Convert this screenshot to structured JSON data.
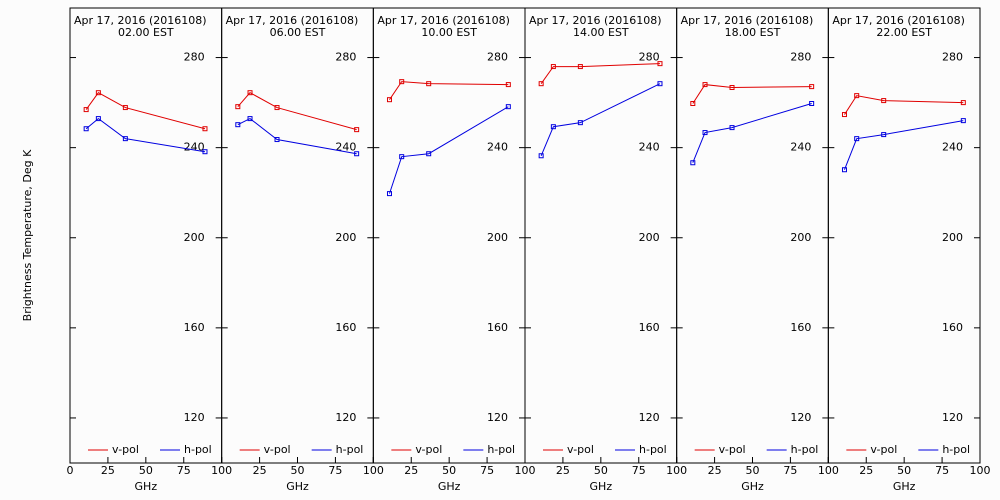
{
  "chart_data": [
    {
      "type": "line",
      "title": "Apr 17, 2016 (2016108)",
      "subtitle": "02.00 EST",
      "ylabel": "Brightness Temperature, Deg K",
      "xlabel": "GHz",
      "x": [
        10.65,
        18.7,
        36.5,
        89
      ],
      "xlim": [
        0,
        100
      ],
      "xticks": [
        0,
        25,
        50,
        75,
        100
      ],
      "ylim": [
        100,
        302
      ],
      "yticks": [
        120,
        160,
        200,
        240,
        280
      ],
      "legend": "lower",
      "series": [
        {
          "name": "v-pol",
          "color": "#e00000",
          "values": [
            256.9,
            264.4,
            257.8,
            248.4
          ]
        },
        {
          "name": "h-pol",
          "color": "#0000e0",
          "values": [
            248.4,
            252.9,
            244,
            238.2
          ]
        }
      ]
    },
    {
      "type": "line",
      "title": "Apr 17, 2016 (2016108)",
      "subtitle": "06.00 EST",
      "xlabel": "GHz",
      "x": [
        10.65,
        18.7,
        36.5,
        89
      ],
      "xlim": [
        0,
        100
      ],
      "xticks": [
        0,
        25,
        50,
        75,
        100
      ],
      "ylim": [
        100,
        302
      ],
      "yticks": [
        120,
        160,
        200,
        240,
        280
      ],
      "legend": "lower",
      "series": [
        {
          "name": "v-pol",
          "color": "#e00000",
          "values": [
            258.2,
            264.4,
            257.8,
            248
          ]
        },
        {
          "name": "h-pol",
          "color": "#0000e0",
          "values": [
            250.2,
            252.9,
            243.6,
            237.3
          ]
        }
      ]
    },
    {
      "type": "line",
      "title": "Apr 17, 2016 (2016108)",
      "subtitle": "10.00 EST",
      "xlabel": "GHz",
      "x": [
        10.65,
        18.7,
        36.5,
        89
      ],
      "xlim": [
        0,
        100
      ],
      "xticks": [
        0,
        25,
        50,
        75,
        100
      ],
      "ylim": [
        100,
        302
      ],
      "yticks": [
        120,
        160,
        200,
        240,
        280
      ],
      "legend": "lower",
      "series": [
        {
          "name": "v-pol",
          "color": "#e00000",
          "values": [
            261.3,
            269.3,
            268.4,
            268
          ]
        },
        {
          "name": "h-pol",
          "color": "#0000e0",
          "values": [
            219.6,
            236,
            237.3,
            258.2
          ]
        }
      ]
    },
    {
      "type": "line",
      "title": "Apr 17, 2016 (2016108)",
      "subtitle": "14.00 EST",
      "xlabel": "GHz",
      "x": [
        10.65,
        18.7,
        36.5,
        89
      ],
      "xlim": [
        0,
        100
      ],
      "xticks": [
        0,
        25,
        50,
        75,
        100
      ],
      "ylim": [
        100,
        302
      ],
      "yticks": [
        120,
        160,
        200,
        240,
        280
      ],
      "legend": "lower",
      "series": [
        {
          "name": "v-pol",
          "color": "#e00000",
          "values": [
            268.4,
            276,
            276,
            277.3
          ]
        },
        {
          "name": "h-pol",
          "color": "#0000e0",
          "values": [
            236.4,
            249.3,
            251.1,
            268.4
          ]
        }
      ]
    },
    {
      "type": "line",
      "title": "Apr 17, 2016 (2016108)",
      "subtitle": "18.00 EST",
      "xlabel": "GHz",
      "x": [
        10.65,
        18.7,
        36.5,
        89
      ],
      "xlim": [
        0,
        100
      ],
      "xticks": [
        0,
        25,
        50,
        75,
        100
      ],
      "ylim": [
        100,
        302
      ],
      "yticks": [
        120,
        160,
        200,
        240,
        280
      ],
      "legend": "lower",
      "series": [
        {
          "name": "v-pol",
          "color": "#e00000",
          "values": [
            259.6,
            268,
            266.7,
            267.1
          ]
        },
        {
          "name": "h-pol",
          "color": "#0000e0",
          "values": [
            233.3,
            246.7,
            248.9,
            259.6
          ]
        }
      ]
    },
    {
      "type": "line",
      "title": "Apr 17, 2016 (2016108)",
      "subtitle": "22.00 EST",
      "xlabel": "GHz",
      "x": [
        10.65,
        18.7,
        36.5,
        89
      ],
      "xlim": [
        0,
        100
      ],
      "xticks": [
        0,
        25,
        50,
        75,
        100
      ],
      "ylim": [
        100,
        302
      ],
      "yticks": [
        120,
        160,
        200,
        240,
        280
      ],
      "legend": "lower",
      "series": [
        {
          "name": "v-pol",
          "color": "#e00000",
          "values": [
            254.7,
            263.1,
            260.9,
            260
          ]
        },
        {
          "name": "h-pol",
          "color": "#0000e0",
          "values": [
            230.2,
            244,
            245.8,
            252
          ]
        }
      ]
    }
  ]
}
